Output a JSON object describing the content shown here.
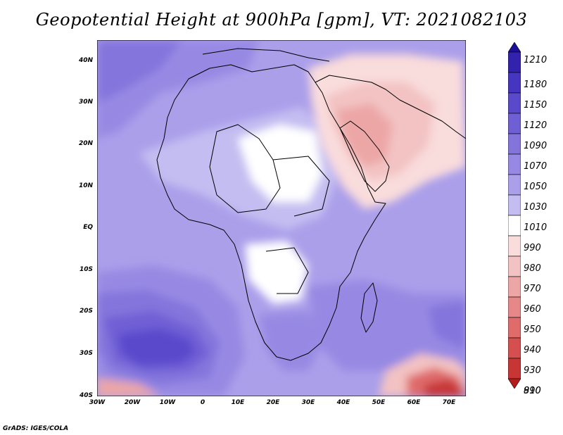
{
  "title": "Geopotential Height at 900hPa [gpm], VT: 2021082103",
  "footer": "GrADS: IGES/COLA",
  "map": {
    "region": "Africa and Arabian Peninsula",
    "projection": "lat-lon",
    "lon_range": [
      -30,
      75
    ],
    "lat_range": [
      -40,
      45
    ],
    "lat_labels": [
      "40N",
      "30N",
      "20N",
      "10N",
      "EQ",
      "10S",
      "20S",
      "30S",
      "40S"
    ],
    "lon_labels": [
      "30W",
      "20W",
      "10W",
      "0",
      "10E",
      "20E",
      "30E",
      "40E",
      "50E",
      "60E",
      "70E"
    ]
  },
  "colorbar": {
    "labels": [
      "1210",
      "1180",
      "1150",
      "1120",
      "1090",
      "1070",
      "1050",
      "1030",
      "1010",
      "990",
      "980",
      "970",
      "960",
      "950",
      "940",
      "930",
      "910",
      "890"
    ],
    "colors": [
      "#1c0f9a",
      "#3322ae",
      "#4535c0",
      "#5a4acb",
      "#6f5fd5",
      "#8374dc",
      "#9789e3",
      "#ab9fea",
      "#c4bdf1",
      "#ffffff",
      "#f9dcdc",
      "#f3c2c2",
      "#eca6a6",
      "#e68888",
      "#df6b6b",
      "#d54f4f",
      "#c73535",
      "#b51d1d"
    ]
  }
}
